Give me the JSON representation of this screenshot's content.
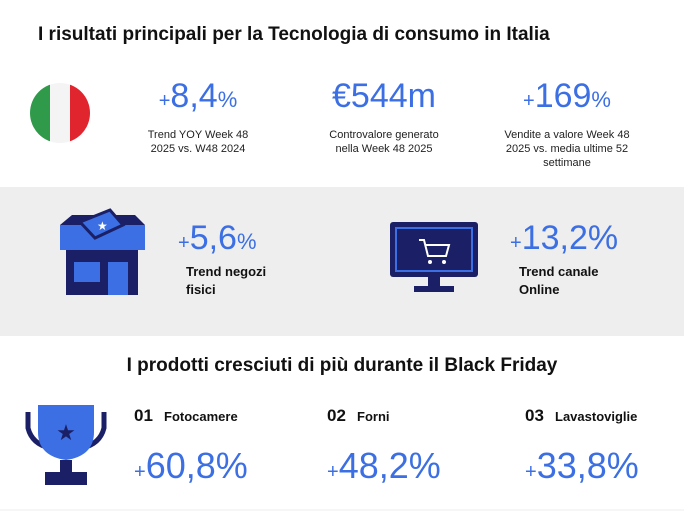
{
  "header": {
    "title": "I risultati principali per la Tecnologia di consumo in Italia"
  },
  "kpis": [
    {
      "sign": "+",
      "value": "8,4",
      "unit": "%",
      "caption": [
        "Trend YOY Week 48",
        "2025 vs. W48 2024"
      ]
    },
    {
      "value": "€544m",
      "caption": [
        "Controvalore generato",
        "nella Week 48 2025"
      ]
    },
    {
      "sign": "+",
      "value": "169",
      "unit": "%",
      "caption": [
        "Vendite a valore Week 48",
        "2025 vs. media ultime 52",
        "settimane"
      ]
    }
  ],
  "channels": [
    {
      "sign": "+",
      "value": "5,6",
      "unit": "%",
      "caption": [
        "Trend negozi",
        "fisici"
      ]
    },
    {
      "sign": "+",
      "value": "13,2",
      "unit": "%",
      "caption": [
        "Trend canale",
        "Online"
      ]
    }
  ],
  "products": {
    "title": "I prodotti cresciuti di più durante il Black Friday",
    "items": [
      {
        "rank": "01",
        "name": "Fotocamere",
        "sign": "+",
        "value": "60,8",
        "unit": "%"
      },
      {
        "rank": "02",
        "name": "Forni",
        "sign": "+",
        "value": "48,2",
        "unit": "%"
      },
      {
        "rank": "03",
        "name": "Lavastoviglie",
        "sign": "+",
        "value": "33,8",
        "unit": "%"
      }
    ]
  }
}
